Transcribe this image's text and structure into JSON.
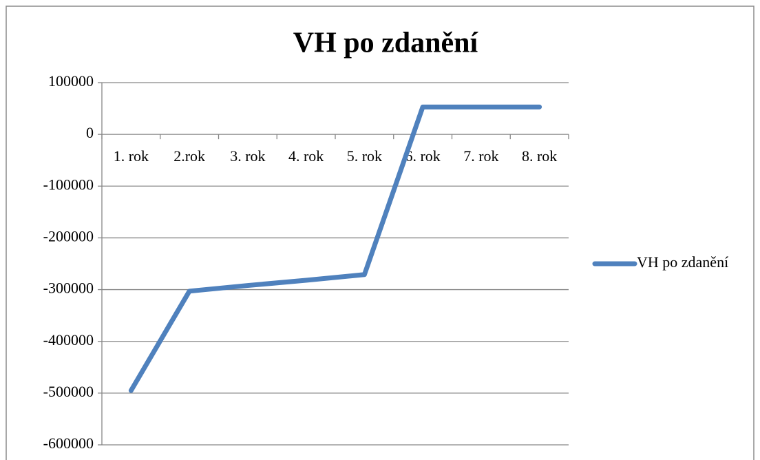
{
  "chart_data": {
    "type": "line",
    "title": "VH po zdanění",
    "categories": [
      "1. rok",
      "2.rok",
      "3. rok",
      "4. rok",
      "5. rok",
      "6. rok",
      "7. rok",
      "8. rok"
    ],
    "series": [
      {
        "name": "VH po zdanění",
        "color": "#4f81bd",
        "values": [
          -495000,
          -303000,
          -292000,
          -282000,
          -271000,
          53000,
          53000,
          53000
        ]
      }
    ],
    "ylim": [
      -600000,
      100000
    ],
    "yticks": [
      -600000,
      -500000,
      -400000,
      -300000,
      -200000,
      -100000,
      0,
      100000
    ],
    "grid": true,
    "legend": "right"
  }
}
